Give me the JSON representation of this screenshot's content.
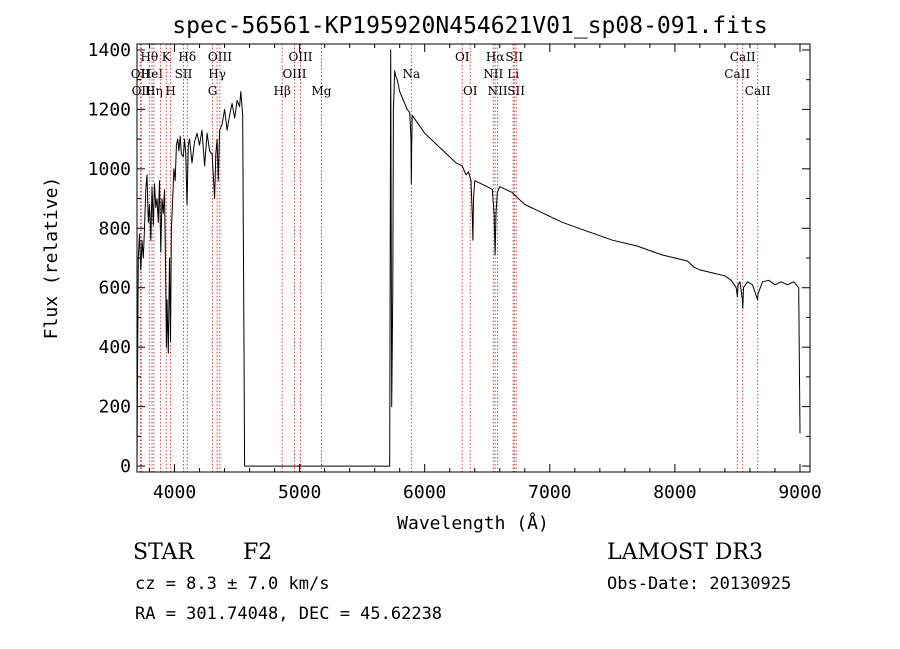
{
  "chart_data": {
    "type": "line",
    "title": "spec-56561-KP195920N454621V01_sp08-091.fits",
    "xlabel": "Wavelength (Å)",
    "ylabel": "Flux (relative)",
    "xlim": [
      3700,
      9080
    ],
    "ylim": [
      -20,
      1420
    ],
    "xticks": [
      4000,
      5000,
      6000,
      7000,
      8000,
      9000
    ],
    "yticks": [
      0,
      200,
      400,
      600,
      800,
      1000,
      1200,
      1400
    ],
    "series": [
      {
        "name": "flux",
        "points": [
          [
            3700,
            0
          ],
          [
            3705,
            350
          ],
          [
            3710,
            700
          ],
          [
            3720,
            780
          ],
          [
            3730,
            660
          ],
          [
            3740,
            760
          ],
          [
            3750,
            700
          ],
          [
            3760,
            800
          ],
          [
            3770,
            930
          ],
          [
            3780,
            980
          ],
          [
            3790,
            820
          ],
          [
            3800,
            880
          ],
          [
            3810,
            760
          ],
          [
            3820,
            940
          ],
          [
            3830,
            810
          ],
          [
            3840,
            950
          ],
          [
            3850,
            870
          ],
          [
            3860,
            900
          ],
          [
            3870,
            820
          ],
          [
            3880,
            960
          ],
          [
            3890,
            720
          ],
          [
            3900,
            900
          ],
          [
            3910,
            850
          ],
          [
            3920,
            930
          ],
          [
            3930,
            600
          ],
          [
            3935,
            400
          ],
          [
            3940,
            560
          ],
          [
            3950,
            380
          ],
          [
            3960,
            700
          ],
          [
            3968,
            420
          ],
          [
            3975,
            800
          ],
          [
            3985,
            900
          ],
          [
            3995,
            1000
          ],
          [
            4005,
            960
          ],
          [
            4015,
            1080
          ],
          [
            4025,
            1100
          ],
          [
            4035,
            1060
          ],
          [
            4045,
            1110
          ],
          [
            4055,
            1050
          ],
          [
            4070,
            1040
          ],
          [
            4080,
            1100
          ],
          [
            4090,
            1050
          ],
          [
            4100,
            880
          ],
          [
            4110,
            1080
          ],
          [
            4120,
            1100
          ],
          [
            4140,
            1020
          ],
          [
            4160,
            1090
          ],
          [
            4180,
            1120
          ],
          [
            4200,
            1080
          ],
          [
            4220,
            1130
          ],
          [
            4240,
            1010
          ],
          [
            4260,
            1120
          ],
          [
            4280,
            1060
          ],
          [
            4300,
            1050
          ],
          [
            4320,
            900
          ],
          [
            4330,
            1050
          ],
          [
            4340,
            1100
          ],
          [
            4350,
            960
          ],
          [
            4360,
            1130
          ],
          [
            4380,
            1150
          ],
          [
            4400,
            1200
          ],
          [
            4420,
            1130
          ],
          [
            4440,
            1180
          ],
          [
            4460,
            1220
          ],
          [
            4480,
            1170
          ],
          [
            4500,
            1230
          ],
          [
            4520,
            1210
          ],
          [
            4530,
            1260
          ],
          [
            4545,
            1180
          ],
          [
            4550,
            800
          ],
          [
            4555,
            400
          ],
          [
            4560,
            0
          ],
          [
            5720,
            0
          ],
          [
            5728,
            1400
          ],
          [
            5736,
            200
          ],
          [
            5745,
            600
          ],
          [
            5750,
            1200
          ],
          [
            5760,
            1330
          ],
          [
            5770,
            1310
          ],
          [
            5780,
            1300
          ],
          [
            5800,
            1260
          ],
          [
            5820,
            1240
          ],
          [
            5840,
            1220
          ],
          [
            5860,
            1200
          ],
          [
            5880,
            1190
          ],
          [
            5890,
            1100
          ],
          [
            5893,
            950
          ],
          [
            5896,
            1080
          ],
          [
            5900,
            1180
          ],
          [
            5950,
            1150
          ],
          [
            6000,
            1120
          ],
          [
            6050,
            1100
          ],
          [
            6100,
            1080
          ],
          [
            6150,
            1060
          ],
          [
            6200,
            1040
          ],
          [
            6250,
            1020
          ],
          [
            6300,
            1010
          ],
          [
            6330,
            980
          ],
          [
            6350,
            990
          ],
          [
            6370,
            960
          ],
          [
            6380,
            850
          ],
          [
            6385,
            760
          ],
          [
            6390,
            900
          ],
          [
            6400,
            960
          ],
          [
            6450,
            950
          ],
          [
            6500,
            940
          ],
          [
            6540,
            930
          ],
          [
            6555,
            850
          ],
          [
            6563,
            710
          ],
          [
            6570,
            850
          ],
          [
            6580,
            920
          ],
          [
            6600,
            940
          ],
          [
            6650,
            930
          ],
          [
            6700,
            920
          ],
          [
            6750,
            900
          ],
          [
            6800,
            880
          ],
          [
            6900,
            860
          ],
          [
            7000,
            840
          ],
          [
            7100,
            820
          ],
          [
            7200,
            805
          ],
          [
            7300,
            790
          ],
          [
            7400,
            775
          ],
          [
            7500,
            760
          ],
          [
            7600,
            750
          ],
          [
            7700,
            740
          ],
          [
            7800,
            725
          ],
          [
            7900,
            710
          ],
          [
            8000,
            700
          ],
          [
            8100,
            690
          ],
          [
            8150,
            670
          ],
          [
            8200,
            660
          ],
          [
            8300,
            650
          ],
          [
            8400,
            640
          ],
          [
            8450,
            625
          ],
          [
            8490,
            600
          ],
          [
            8500,
            570
          ],
          [
            8505,
            610
          ],
          [
            8520,
            620
          ],
          [
            8540,
            560
          ],
          [
            8543,
            530
          ],
          [
            8548,
            600
          ],
          [
            8580,
            620
          ],
          [
            8620,
            610
          ],
          [
            8660,
            560
          ],
          [
            8665,
            580
          ],
          [
            8700,
            620
          ],
          [
            8750,
            625
          ],
          [
            8800,
            610
          ],
          [
            8850,
            620
          ],
          [
            8900,
            610
          ],
          [
            8950,
            620
          ],
          [
            8990,
            600
          ],
          [
            9000,
            110
          ]
        ]
      }
    ],
    "lines": [
      {
        "wl": 3727,
        "label": "OII",
        "row": 1
      },
      {
        "wl": 3734,
        "label": "OII",
        "row": 2
      },
      {
        "wl": 3798,
        "label": "Hθ",
        "row": 0
      },
      {
        "wl": 3820,
        "label": "HeI",
        "row": 1
      },
      {
        "wl": 3835,
        "label": "Hη",
        "row": 2
      },
      {
        "wl": 3889,
        "label": "",
        "row": 0
      },
      {
        "wl": 3934,
        "label": "K",
        "row": 0
      },
      {
        "wl": 3969,
        "label": "H",
        "row": 2
      },
      {
        "wl": 4072,
        "label": "SII",
        "row": 1
      },
      {
        "wl": 4102,
        "label": "Hδ",
        "row": 0
      },
      {
        "wl": 4304,
        "label": "G",
        "row": 2
      },
      {
        "wl": 4340,
        "label": "Hγ",
        "row": 1
      },
      {
        "wl": 4363,
        "label": "OIII",
        "row": 0
      },
      {
        "wl": 4861,
        "label": "Hβ",
        "row": 2
      },
      {
        "wl": 4959,
        "label": "OIII",
        "row": 1
      },
      {
        "wl": 5007,
        "label": "OIII",
        "row": 0
      },
      {
        "wl": 5175,
        "label": "Mg",
        "row": 2
      },
      {
        "wl": 5893,
        "label": "Na",
        "row": 1
      },
      {
        "wl": 6300,
        "label": "OI",
        "row": 0
      },
      {
        "wl": 6364,
        "label": "OI",
        "row": 2
      },
      {
        "wl": 6548,
        "label": "NII",
        "row": 1
      },
      {
        "wl": 6563,
        "label": "Hα",
        "row": 0
      },
      {
        "wl": 6583,
        "label": "NII",
        "row": 2
      },
      {
        "wl": 6707,
        "label": "Li",
        "row": 1
      },
      {
        "wl": 6716,
        "label": "SII",
        "row": 0
      },
      {
        "wl": 6731,
        "label": "SII",
        "row": 2
      },
      {
        "wl": 8498,
        "label": "CaII",
        "row": 1
      },
      {
        "wl": 8542,
        "label": "CaII",
        "row": 0
      },
      {
        "wl": 8662,
        "label": "CaII",
        "row": 2
      }
    ]
  },
  "info": {
    "class": "STAR",
    "subclass": "F2",
    "cz": "cz = 8.3 ± 7.0 km/s",
    "coords": "RA = 301.74048, DEC =  45.62238",
    "survey": "LAMOST DR3",
    "obsdate": "Obs-Date: 20130925"
  }
}
